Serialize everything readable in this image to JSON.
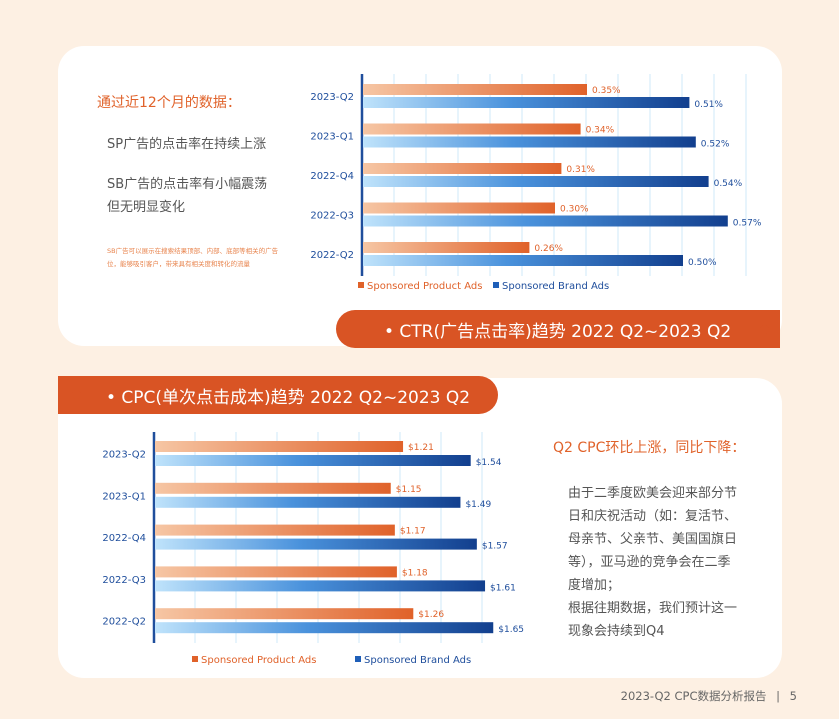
{
  "top": {
    "heading": "通过近12个月的数据：",
    "points": [
      "SP广告的点击率在持续上涨",
      "SB广告的点击率有小幅震荡",
      "但无明显变化"
    ],
    "note": "SB广告可以展示在搜索结果顶部、内部、底部等相关的广告位，能够吸引客户，带来具有相关度和转化的流量",
    "banner": "• CTR(广告点击率)趋势 2022 Q2~2023 Q2"
  },
  "bottom": {
    "banner": "• CPC(单次点击成本)趋势 2022 Q2~2023 Q2",
    "heading": "Q2 CPC环比上涨，同比下降：",
    "paragraph_lines": [
      "由于二季度欧美会迎来部分节",
      "日和庆祝活动（如：复活节、",
      "母亲节、父亲节、美国国旗日",
      "等），亚马逊的竞争会在二季",
      "度增加；",
      "根据往期数据，我们预计这一",
      "现象会持续到Q4"
    ]
  },
  "footer": {
    "title": "2023-Q2 CPC数据分析报告",
    "sep": "|",
    "page": "5"
  },
  "colors": {
    "accent": "#d95424",
    "sp_bar": "#e8703a",
    "sb_bar": "#1e5fb8"
  },
  "chart_data": [
    {
      "type": "bar",
      "orientation": "horizontal",
      "title": "CTR(广告点击率)趋势 2022 Q2~2023 Q2",
      "categories": [
        "2023-Q2",
        "2023-Q1",
        "2022-Q4",
        "2022-Q3",
        "2022-Q2"
      ],
      "series": [
        {
          "name": "Sponsored Product Ads",
          "values": [
            0.35,
            0.34,
            0.31,
            0.3,
            0.26
          ],
          "labels": [
            "0.35%",
            "0.34%",
            "0.31%",
            "0.30%",
            "0.26%"
          ]
        },
        {
          "name": "Sponsored Brand Ads",
          "values": [
            0.51,
            0.52,
            0.54,
            0.57,
            0.5
          ],
          "labels": [
            "0.51%",
            "0.52%",
            "0.54%",
            "0.57%",
            "0.50%"
          ]
        }
      ],
      "xlim": [
        0,
        0.65
      ],
      "grid": true,
      "legend": "bottom"
    },
    {
      "type": "bar",
      "orientation": "horizontal",
      "title": "CPC(单次点击成本)趋势 2022 Q2~2023 Q2",
      "categories": [
        "2023-Q2",
        "2023-Q1",
        "2022-Q4",
        "2022-Q3",
        "2022-Q2"
      ],
      "series": [
        {
          "name": "Sponsored Product Ads",
          "values": [
            1.21,
            1.15,
            1.17,
            1.18,
            1.26
          ],
          "labels": [
            "$1.21",
            "$1.15",
            "$1.17",
            "$1.18",
            "$1.26"
          ]
        },
        {
          "name": "Sponsored Brand Ads",
          "values": [
            1.54,
            1.49,
            1.57,
            1.61,
            1.65
          ],
          "labels": [
            "$1.54",
            "$1.49",
            "$1.57",
            "$1.61",
            "$1.65"
          ]
        }
      ],
      "xlim": [
        0,
        2.0
      ],
      "grid": true,
      "legend": "bottom"
    }
  ]
}
